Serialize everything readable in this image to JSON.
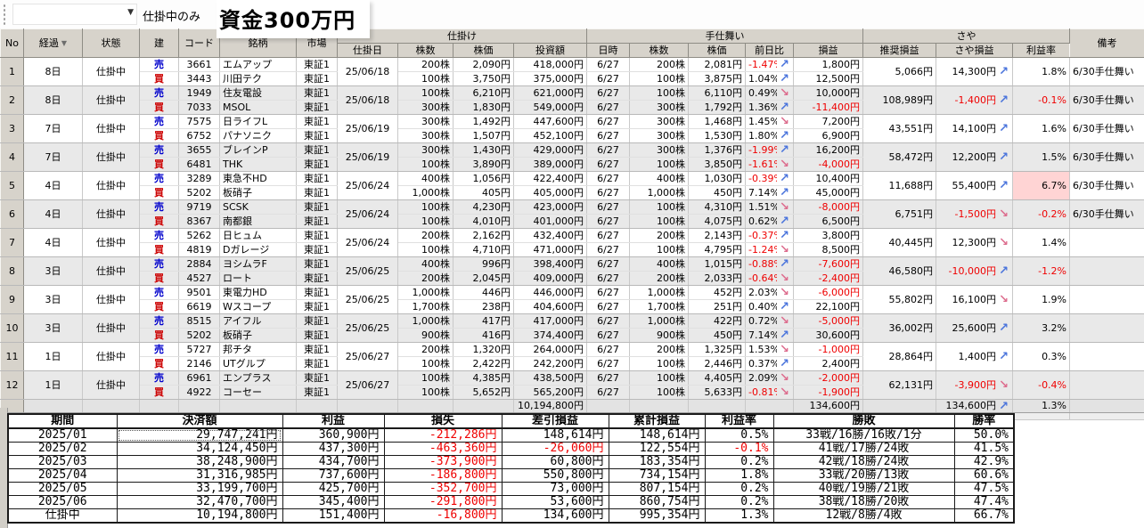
{
  "toolbar": {
    "filter_value": "仕掛中のみ",
    "funds_label": "資金300万円"
  },
  "icons": {
    "up_arrow": "↗",
    "down_arrow": "↘",
    "dropdown_arrow": "▼",
    "sort_desc_arrow": "▼"
  },
  "colors": {
    "up_arrow": "#4a74dc",
    "down_arrow": "#dd6d8e",
    "negative_text": "#ef0000",
    "sell_text": "#0000cc",
    "buy_text": "#cc0000",
    "rate_highlight_bg": "#ffd4d4",
    "header_bg": "#d7d3cb"
  },
  "grid": {
    "headers": {
      "no": "No",
      "elapsed": "経過",
      "status": "状態",
      "position": "建",
      "code": "コード",
      "name": "銘柄",
      "market": "市場",
      "entry_group": "仕掛け",
      "entry_date": "仕掛日",
      "shares": "株数",
      "price": "株価",
      "amount": "投資額",
      "exit_group": "手仕舞い",
      "exit_date": "日時",
      "exit_shares": "株数",
      "exit_price": "株価",
      "prev_change": "前日比",
      "pl": "損益",
      "saya_group": "さや",
      "rec_pl": "推奨損益",
      "saya_pl": "さや損益",
      "rate": "利益率",
      "note": "備考"
    },
    "rows": [
      {
        "no": "1",
        "elapsed": "8日",
        "status": "仕掛中",
        "entry_date": "25/06/18",
        "legs": [
          {
            "side": "売",
            "code": "3661",
            "name": "エムアップ",
            "market": "東証1",
            "shares": "200株",
            "price": "2,090円",
            "amount": "418,000円",
            "exit_date": "6/27",
            "exit_shares": "200株",
            "exit_price": "2,081円",
            "change": "-1.47%",
            "arrow": "up",
            "pl": "1,800円"
          },
          {
            "side": "買",
            "code": "3443",
            "name": "川田テク",
            "market": "東証1",
            "shares": "100株",
            "price": "3,750円",
            "amount": "375,000円",
            "exit_date": "6/27",
            "exit_shares": "100株",
            "exit_price": "3,875円",
            "change": "1.04%",
            "arrow": "up",
            "pl": "12,500円"
          }
        ],
        "rec_pl": "5,066円",
        "saya_pl": "14,300円",
        "saya_arrow": "up",
        "rate": "1.8%",
        "rate_highlight": false,
        "note": "6/30手仕舞い"
      },
      {
        "no": "2",
        "elapsed": "8日",
        "status": "仕掛中",
        "entry_date": "25/06/18",
        "legs": [
          {
            "side": "売",
            "code": "1949",
            "name": "住友電設",
            "market": "東証1",
            "shares": "100株",
            "price": "6,210円",
            "amount": "621,000円",
            "exit_date": "6/27",
            "exit_shares": "100株",
            "exit_price": "6,110円",
            "change": "0.49%",
            "arrow": "down",
            "pl": "10,000円"
          },
          {
            "side": "買",
            "code": "7033",
            "name": "MSOL",
            "market": "東証1",
            "shares": "300株",
            "price": "1,830円",
            "amount": "549,000円",
            "exit_date": "6/27",
            "exit_shares": "300株",
            "exit_price": "1,792円",
            "change": "1.36%",
            "arrow": "up",
            "pl": "-11,400円"
          }
        ],
        "rec_pl": "108,989円",
        "saya_pl": "-1,400円",
        "saya_arrow": "up",
        "rate": "-0.1%",
        "rate_highlight": false,
        "note": "6/30手仕舞い"
      },
      {
        "no": "3",
        "elapsed": "7日",
        "status": "仕掛中",
        "entry_date": "25/06/19",
        "legs": [
          {
            "side": "売",
            "code": "7575",
            "name": "日ライフL",
            "market": "東証1",
            "shares": "300株",
            "price": "1,492円",
            "amount": "447,600円",
            "exit_date": "6/27",
            "exit_shares": "300株",
            "exit_price": "1,468円",
            "change": "1.45%",
            "arrow": "down",
            "pl": "7,200円"
          },
          {
            "side": "買",
            "code": "6752",
            "name": "パナソニク",
            "market": "東証1",
            "shares": "300株",
            "price": "1,507円",
            "amount": "452,100円",
            "exit_date": "6/27",
            "exit_shares": "300株",
            "exit_price": "1,530円",
            "change": "1.80%",
            "arrow": "up",
            "pl": "6,900円"
          }
        ],
        "rec_pl": "43,551円",
        "saya_pl": "14,100円",
        "saya_arrow": "up",
        "rate": "1.6%",
        "rate_highlight": false,
        "note": "6/30手仕舞い"
      },
      {
        "no": "4",
        "elapsed": "7日",
        "status": "仕掛中",
        "entry_date": "25/06/19",
        "legs": [
          {
            "side": "売",
            "code": "3655",
            "name": "ブレインP",
            "market": "東証1",
            "shares": "300株",
            "price": "1,430円",
            "amount": "429,000円",
            "exit_date": "6/27",
            "exit_shares": "300株",
            "exit_price": "1,376円",
            "change": "-1.99%",
            "arrow": "up",
            "pl": "16,200円"
          },
          {
            "side": "買",
            "code": "6481",
            "name": "THK",
            "market": "東証1",
            "shares": "100株",
            "price": "3,890円",
            "amount": "389,000円",
            "exit_date": "6/27",
            "exit_shares": "100株",
            "exit_price": "3,850円",
            "change": "-1.61%",
            "arrow": "down",
            "pl": "-4,000円"
          }
        ],
        "rec_pl": "58,472円",
        "saya_pl": "12,200円",
        "saya_arrow": "up",
        "rate": "1.5%",
        "rate_highlight": false,
        "note": "6/30手仕舞い"
      },
      {
        "no": "5",
        "elapsed": "4日",
        "status": "仕掛中",
        "entry_date": "25/06/24",
        "legs": [
          {
            "side": "売",
            "code": "3289",
            "name": "東急不HD",
            "market": "東証1",
            "shares": "400株",
            "price": "1,056円",
            "amount": "422,400円",
            "exit_date": "6/27",
            "exit_shares": "400株",
            "exit_price": "1,030円",
            "change": "-0.39%",
            "arrow": "up",
            "pl": "10,400円"
          },
          {
            "side": "買",
            "code": "5202",
            "name": "板硝子",
            "market": "東証1",
            "shares": "1,000株",
            "price": "405円",
            "amount": "405,000円",
            "exit_date": "6/27",
            "exit_shares": "1,000株",
            "exit_price": "450円",
            "change": "7.14%",
            "arrow": "up",
            "pl": "45,000円"
          }
        ],
        "rec_pl": "11,688円",
        "saya_pl": "55,400円",
        "saya_arrow": "up",
        "rate": "6.7%",
        "rate_highlight": true,
        "note": "6/30手仕舞い"
      },
      {
        "no": "6",
        "elapsed": "4日",
        "status": "仕掛中",
        "entry_date": "25/06/24",
        "legs": [
          {
            "side": "売",
            "code": "9719",
            "name": "SCSK",
            "market": "東証1",
            "shares": "100株",
            "price": "4,230円",
            "amount": "423,000円",
            "exit_date": "6/27",
            "exit_shares": "100株",
            "exit_price": "4,310円",
            "change": "1.51%",
            "arrow": "down",
            "pl": "-8,000円"
          },
          {
            "side": "買",
            "code": "8367",
            "name": "南都銀",
            "market": "東証1",
            "shares": "100株",
            "price": "4,010円",
            "amount": "401,000円",
            "exit_date": "6/27",
            "exit_shares": "100株",
            "exit_price": "4,075円",
            "change": "0.62%",
            "arrow": "up",
            "pl": "6,500円"
          }
        ],
        "rec_pl": "6,751円",
        "saya_pl": "-1,500円",
        "saya_arrow": "down",
        "rate": "-0.2%",
        "rate_highlight": false,
        "note": "6/30手仕舞い"
      },
      {
        "no": "7",
        "elapsed": "4日",
        "status": "仕掛中",
        "entry_date": "25/06/24",
        "legs": [
          {
            "side": "売",
            "code": "5262",
            "name": "日ヒュム",
            "market": "東証1",
            "shares": "200株",
            "price": "2,162円",
            "amount": "432,400円",
            "exit_date": "6/27",
            "exit_shares": "200株",
            "exit_price": "2,143円",
            "change": "-0.37%",
            "arrow": "up",
            "pl": "3,800円"
          },
          {
            "side": "買",
            "code": "4819",
            "name": "Dガレージ",
            "market": "東証1",
            "shares": "100株",
            "price": "4,710円",
            "amount": "471,000円",
            "exit_date": "6/27",
            "exit_shares": "100株",
            "exit_price": "4,795円",
            "change": "-1.24%",
            "arrow": "down",
            "pl": "8,500円"
          }
        ],
        "rec_pl": "40,445円",
        "saya_pl": "12,300円",
        "saya_arrow": "down",
        "rate": "1.4%",
        "rate_highlight": false,
        "note": ""
      },
      {
        "no": "8",
        "elapsed": "3日",
        "status": "仕掛中",
        "entry_date": "25/06/25",
        "legs": [
          {
            "side": "売",
            "code": "2884",
            "name": "ヨシムラF",
            "market": "東証1",
            "shares": "400株",
            "price": "996円",
            "amount": "398,400円",
            "exit_date": "6/27",
            "exit_shares": "400株",
            "exit_price": "1,015円",
            "change": "-0.88%",
            "arrow": "up",
            "pl": "-7,600円"
          },
          {
            "side": "買",
            "code": "4527",
            "name": "ロート",
            "market": "東証1",
            "shares": "200株",
            "price": "2,045円",
            "amount": "409,000円",
            "exit_date": "6/27",
            "exit_shares": "200株",
            "exit_price": "2,033円",
            "change": "-0.64%",
            "arrow": "down",
            "pl": "-2,400円"
          }
        ],
        "rec_pl": "46,580円",
        "saya_pl": "-10,000円",
        "saya_arrow": "up",
        "rate": "-1.2%",
        "rate_highlight": false,
        "note": ""
      },
      {
        "no": "9",
        "elapsed": "3日",
        "status": "仕掛中",
        "entry_date": "25/06/25",
        "legs": [
          {
            "side": "売",
            "code": "9501",
            "name": "東電力HD",
            "market": "東証1",
            "shares": "1,000株",
            "price": "446円",
            "amount": "446,000円",
            "exit_date": "6/27",
            "exit_shares": "1,000株",
            "exit_price": "452円",
            "change": "2.03%",
            "arrow": "down",
            "pl": "-6,000円"
          },
          {
            "side": "買",
            "code": "6619",
            "name": "Wスコープ",
            "market": "東証1",
            "shares": "1,700株",
            "price": "238円",
            "amount": "404,600円",
            "exit_date": "6/27",
            "exit_shares": "1,700株",
            "exit_price": "251円",
            "change": "0.40%",
            "arrow": "up",
            "pl": "22,100円"
          }
        ],
        "rec_pl": "55,802円",
        "saya_pl": "16,100円",
        "saya_arrow": "down",
        "rate": "1.9%",
        "rate_highlight": false,
        "note": ""
      },
      {
        "no": "10",
        "elapsed": "3日",
        "status": "仕掛中",
        "entry_date": "25/06/25",
        "legs": [
          {
            "side": "売",
            "code": "8515",
            "name": "アイフル",
            "market": "東証1",
            "shares": "1,000株",
            "price": "417円",
            "amount": "417,000円",
            "exit_date": "6/27",
            "exit_shares": "1,000株",
            "exit_price": "422円",
            "change": "0.72%",
            "arrow": "down",
            "pl": "-5,000円"
          },
          {
            "side": "買",
            "code": "5202",
            "name": "板硝子",
            "market": "東証1",
            "shares": "900株",
            "price": "416円",
            "amount": "374,400円",
            "exit_date": "6/27",
            "exit_shares": "900株",
            "exit_price": "450円",
            "change": "7.14%",
            "arrow": "up",
            "pl": "30,600円"
          }
        ],
        "rec_pl": "36,002円",
        "saya_pl": "25,600円",
        "saya_arrow": "up",
        "rate": "3.2%",
        "rate_highlight": false,
        "note": ""
      },
      {
        "no": "11",
        "elapsed": "1日",
        "status": "仕掛中",
        "entry_date": "25/06/27",
        "legs": [
          {
            "side": "売",
            "code": "5727",
            "name": "邦チタ",
            "market": "東証1",
            "shares": "200株",
            "price": "1,320円",
            "amount": "264,000円",
            "exit_date": "6/27",
            "exit_shares": "200株",
            "exit_price": "1,325円",
            "change": "1.53%",
            "arrow": "down",
            "pl": "-1,000円"
          },
          {
            "side": "買",
            "code": "2146",
            "name": "UTグルプ",
            "market": "東証1",
            "shares": "100株",
            "price": "2,422円",
            "amount": "242,200円",
            "exit_date": "6/27",
            "exit_shares": "100株",
            "exit_price": "2,446円",
            "change": "0.37%",
            "arrow": "up",
            "pl": "2,400円"
          }
        ],
        "rec_pl": "28,864円",
        "saya_pl": "1,400円",
        "saya_arrow": "up",
        "rate": "0.3%",
        "rate_highlight": false,
        "note": ""
      },
      {
        "no": "12",
        "elapsed": "1日",
        "status": "仕掛中",
        "entry_date": "25/06/27",
        "legs": [
          {
            "side": "売",
            "code": "6961",
            "name": "エンプラス",
            "market": "東証1",
            "shares": "100株",
            "price": "4,385円",
            "amount": "438,500円",
            "exit_date": "6/27",
            "exit_shares": "100株",
            "exit_price": "4,405円",
            "change": "2.09%",
            "arrow": "down",
            "pl": "-2,000円"
          },
          {
            "side": "買",
            "code": "4922",
            "name": "コーセー",
            "market": "東証1",
            "shares": "100株",
            "price": "5,652円",
            "amount": "565,200円",
            "exit_date": "6/27",
            "exit_shares": "100株",
            "exit_price": "5,633円",
            "change": "-0.81%",
            "arrow": "down",
            "pl": "-1,900円"
          }
        ],
        "rec_pl": "62,131円",
        "saya_pl": "-3,900円",
        "saya_arrow": "down",
        "rate": "-0.4%",
        "rate_highlight": false,
        "note": ""
      }
    ],
    "total": {
      "amount": "10,194,800円",
      "pl": "134,600円",
      "saya_pl": "134,600円",
      "saya_arrow": "up",
      "rate": "1.3%"
    }
  },
  "summary": {
    "headers": [
      "期間",
      "決済額",
      "利益",
      "損失",
      "差引損益",
      "累計損益",
      "利益率",
      "勝敗",
      "勝率"
    ],
    "rows": [
      {
        "period": "2025/01",
        "settle": "29,747,241円",
        "focused": true,
        "profit": "360,900円",
        "loss": "-212,286円",
        "net": "148,614円",
        "cum": "148,614円",
        "rate": "0.5%",
        "record": "33戦/16勝/16敗/1分",
        "win": "50.0%"
      },
      {
        "period": "2025/02",
        "settle": "34,124,450円",
        "focused": false,
        "profit": "437,300円",
        "loss": "-463,360円",
        "net": "-26,060円",
        "cum": "122,554円",
        "rate": "-0.1%",
        "record": "41戦/17勝/24敗",
        "win": "41.5%"
      },
      {
        "period": "2025/03",
        "settle": "38,248,900円",
        "focused": false,
        "profit": "434,700円",
        "loss": "-373,900円",
        "net": "60,800円",
        "cum": "183,354円",
        "rate": "0.2%",
        "record": "42戦/18勝/24敗",
        "win": "42.9%"
      },
      {
        "period": "2025/04",
        "settle": "31,316,985円",
        "focused": false,
        "profit": "737,600円",
        "loss": "-186,800円",
        "net": "550,800円",
        "cum": "734,154円",
        "rate": "1.8%",
        "record": "33戦/20勝/13敗",
        "win": "60.6%"
      },
      {
        "period": "2025/05",
        "settle": "33,199,700円",
        "focused": false,
        "profit": "425,700円",
        "loss": "-352,700円",
        "net": "73,000円",
        "cum": "807,154円",
        "rate": "0.2%",
        "record": "40戦/19勝/21敗",
        "win": "47.5%"
      },
      {
        "period": "2025/06",
        "settle": "32,470,700円",
        "focused": false,
        "profit": "345,400円",
        "loss": "-291,800円",
        "net": "53,600円",
        "cum": "860,754円",
        "rate": "0.2%",
        "record": "38戦/18勝/20敗",
        "win": "47.4%"
      },
      {
        "period": "仕掛中",
        "settle": "10,194,800円",
        "focused": false,
        "profit": "151,400円",
        "loss": "-16,800円",
        "net": "134,600円",
        "cum": "995,354円",
        "rate": "1.3%",
        "record": "12戦/8勝/4敗",
        "win": "66.7%"
      }
    ]
  }
}
